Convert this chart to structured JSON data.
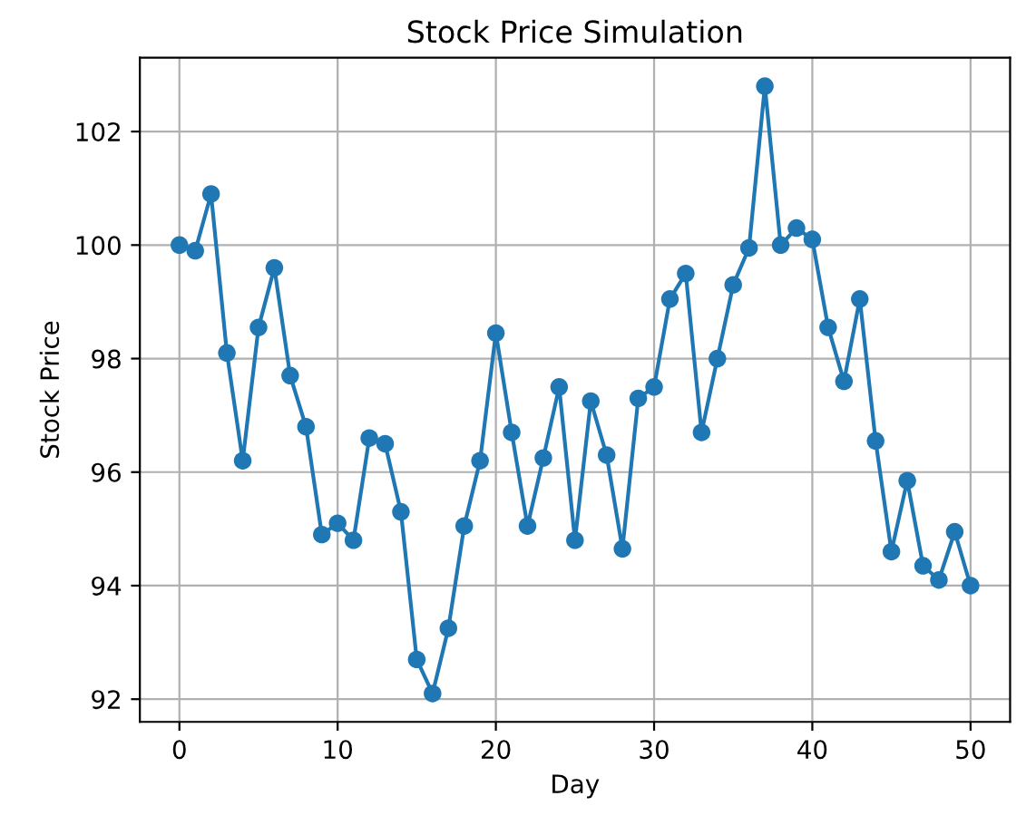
{
  "chart_data": {
    "type": "line",
    "title": "Stock Price Simulation",
    "xlabel": "Day",
    "ylabel": "Stock Price",
    "x": [
      0,
      1,
      2,
      3,
      4,
      5,
      6,
      7,
      8,
      9,
      10,
      11,
      12,
      13,
      14,
      15,
      16,
      17,
      18,
      19,
      20,
      21,
      22,
      23,
      24,
      25,
      26,
      27,
      28,
      29,
      30,
      31,
      32,
      33,
      34,
      35,
      36,
      37,
      38,
      39,
      40,
      41,
      42,
      43,
      44,
      45,
      46,
      47,
      48,
      49,
      50
    ],
    "series": [
      {
        "color": "#1f77b4",
        "values": [
          100.0,
          99.9,
          100.9,
          98.1,
          96.2,
          98.55,
          99.6,
          97.7,
          96.8,
          94.9,
          95.1,
          94.8,
          96.6,
          96.5,
          95.3,
          92.7,
          92.1,
          93.25,
          95.05,
          96.2,
          98.45,
          96.7,
          95.05,
          96.25,
          97.5,
          94.8,
          97.25,
          96.3,
          94.65,
          97.3,
          97.5,
          99.05,
          99.5,
          96.7,
          98.0,
          99.3,
          99.95,
          102.8,
          100.0,
          100.3,
          100.1,
          98.55,
          97.6,
          99.05,
          96.55,
          94.6,
          95.85,
          94.35,
          94.1,
          94.95,
          94.0
        ]
      }
    ],
    "xlim": [
      -2.5,
      52.5
    ],
    "ylim": [
      91.6,
      103.3
    ],
    "xticks": [
      0,
      10,
      20,
      30,
      40,
      50
    ],
    "yticks": [
      92,
      94,
      96,
      98,
      100,
      102
    ],
    "grid": true,
    "marker": "circle",
    "line_style": "solid"
  }
}
